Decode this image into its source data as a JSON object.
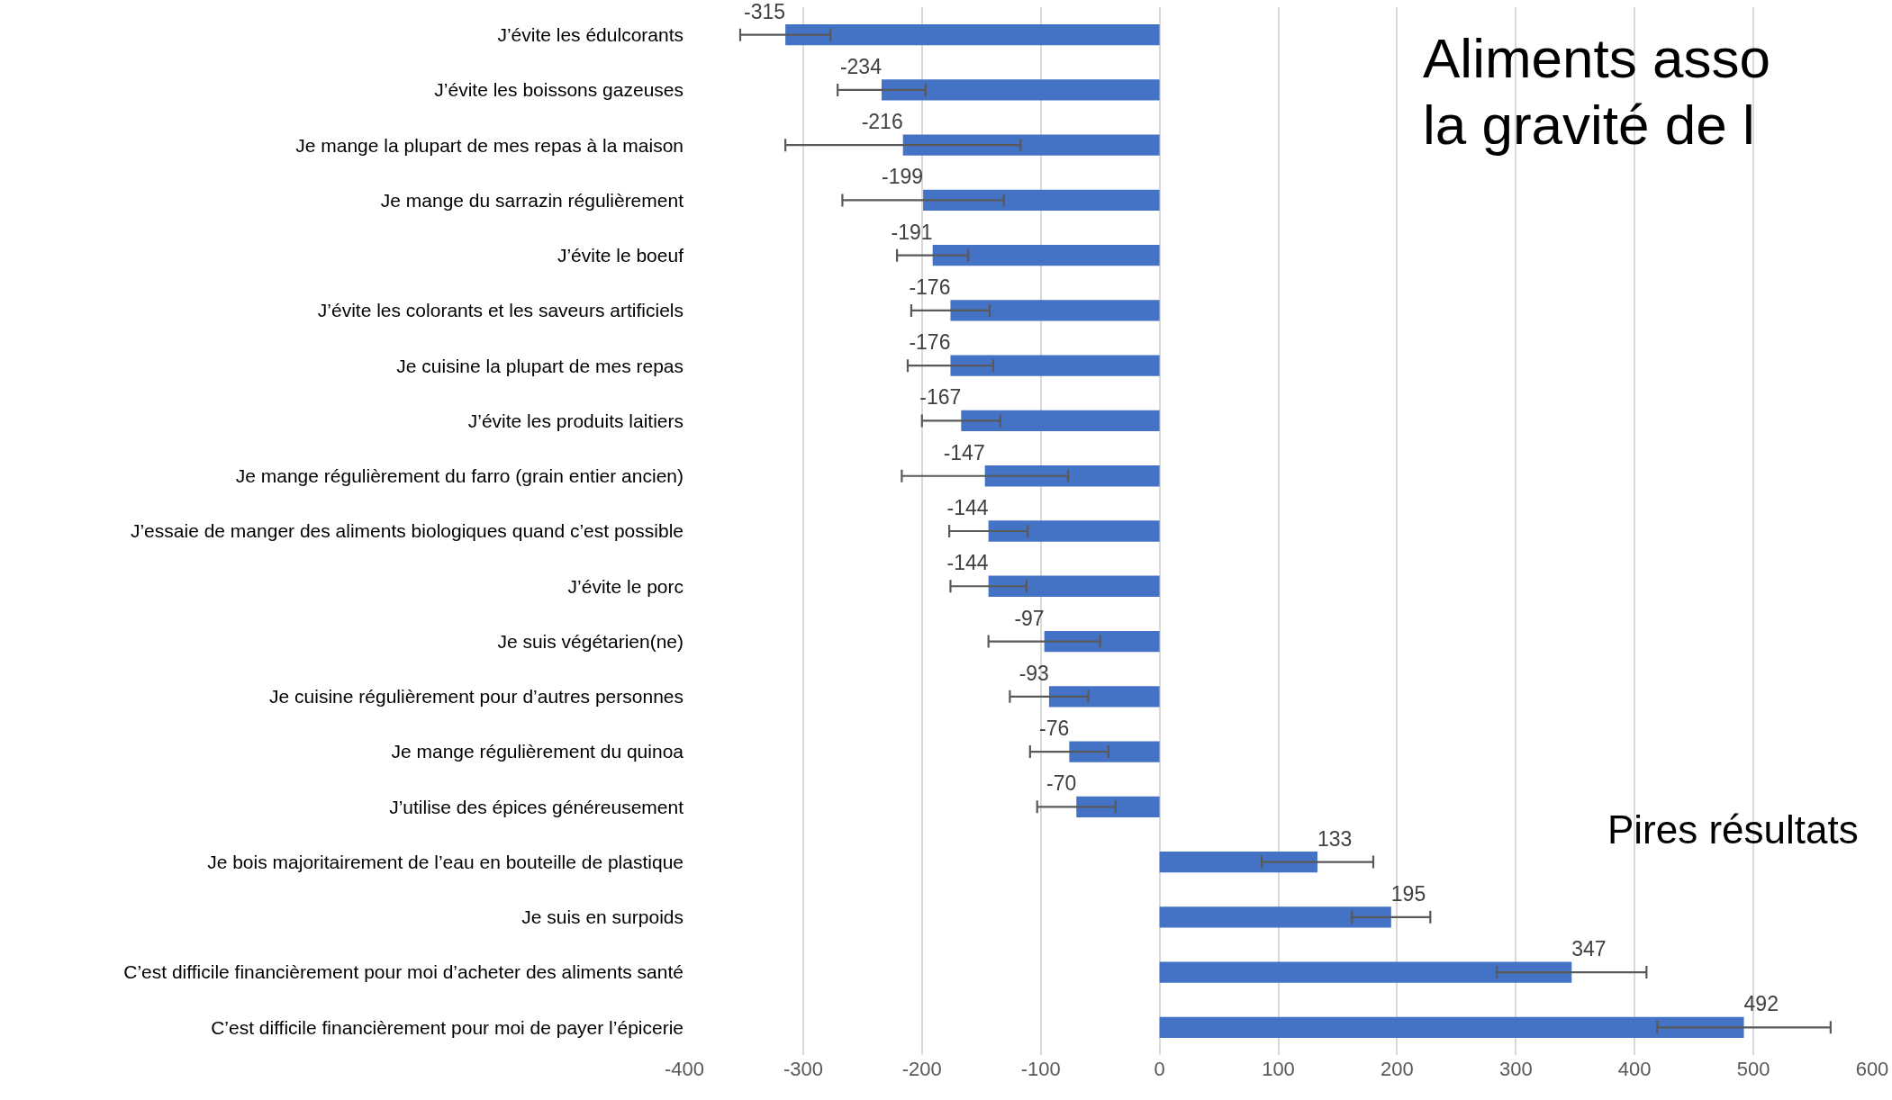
{
  "chart_data": {
    "type": "bar",
    "orientation": "horizontal",
    "title": "Aliments asso\nla gravité de l",
    "categories": [
      "J’évite les édulcorants",
      "J’évite les boissons gazeuses",
      "Je mange la plupart de mes repas à la maison",
      "Je mange du sarrazin régulièrement",
      "J’évite le boeuf",
      "J’évite les colorants et les saveurs artificiels",
      "Je cuisine la plupart de mes repas",
      "J’évite les produits laitiers",
      "Je mange régulièrement du farro (grain entier ancien)",
      "J’essaie de manger des aliments biologiques quand c’est possible",
      "J’évite le porc",
      "Je suis végétarien(ne)",
      "Je cuisine régulièrement pour d’autres personnes",
      "Je mange régulièrement du quinoa",
      "J’utilise des épices généreusement",
      "Je bois majoritairement de l’eau en bouteille de plastique",
      "Je suis en surpoids",
      "C’est difficile financièrement pour moi d’acheter des aliments santé",
      "C’est difficile financièrement pour moi de payer l’épicerie"
    ],
    "values": [
      -315,
      -234,
      -216,
      -199,
      -191,
      -176,
      -176,
      -167,
      -147,
      -144,
      -144,
      -97,
      -93,
      -76,
      -70,
      133,
      195,
      347,
      492
    ],
    "errors": [
      38,
      37,
      99,
      68,
      30,
      33,
      36,
      33,
      70,
      33,
      32,
      47,
      33,
      33,
      33,
      47,
      33,
      63,
      73
    ],
    "color": "#4472c4",
    "data_labels": true,
    "xlim": [
      -400,
      600
    ],
    "xticks": [
      -400,
      -300,
      -200,
      -100,
      0,
      100,
      200,
      300,
      400,
      500,
      600
    ],
    "grid": "x",
    "annotations": [
      "Pires résultats"
    ]
  }
}
